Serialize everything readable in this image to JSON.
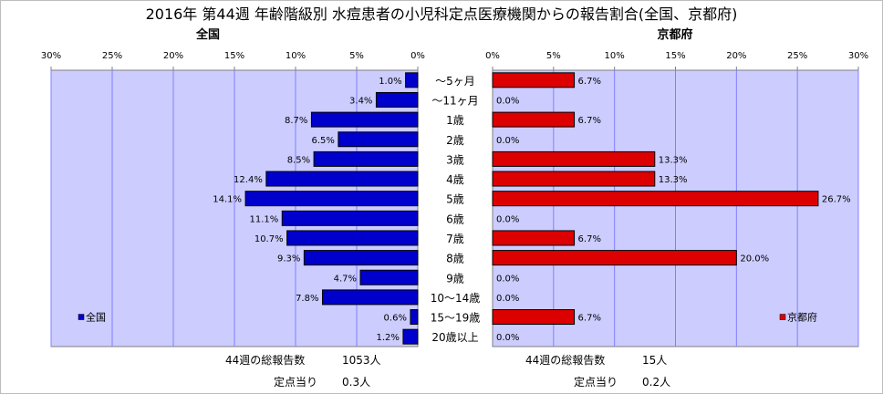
{
  "title": "2016年 第44週 年齢階級別 水痘患者の小児科定点医療機関からの報告割合(全国、京都府)",
  "colors": {
    "national": "#0000CC",
    "kyoto": "#DD0000",
    "plot_bg": "#CCCCFF",
    "grid": "#8080FF"
  },
  "chart_data": [
    {
      "type": "bar",
      "orientation": "horizontal-left",
      "title": "全国",
      "categories": [
        "～5ヶ月",
        "～11ヶ月",
        "1歳",
        "2歳",
        "3歳",
        "4歳",
        "5歳",
        "6歳",
        "7歳",
        "8歳",
        "9歳",
        "10～14歳",
        "15～19歳",
        "20歳以上"
      ],
      "series": [
        {
          "name": "全国",
          "values": [
            1.0,
            3.4,
            8.7,
            6.5,
            8.5,
            12.4,
            14.1,
            11.1,
            10.7,
            9.3,
            4.7,
            7.8,
            0.6,
            1.2
          ]
        }
      ],
      "value_labels": [
        "1.0%",
        "3.4%",
        "8.7%",
        "6.5%",
        "8.5%",
        "12.4%",
        "14.1%",
        "11.1%",
        "10.7%",
        "9.3%",
        "4.7%",
        "7.8%",
        "0.6%",
        "1.2%"
      ],
      "xlim": [
        0,
        30
      ],
      "ticks": [
        "0%",
        "5%",
        "10%",
        "15%",
        "20%",
        "25%",
        "30%"
      ],
      "grid": true,
      "legend": "left",
      "footer": {
        "total_label": "44週の総報告数",
        "total_value": "1053人",
        "per_label": "定点当り",
        "per_value": "0.3人"
      }
    },
    {
      "type": "bar",
      "orientation": "horizontal-right",
      "title": "京都府",
      "categories": [
        "～5ヶ月",
        "～11ヶ月",
        "1歳",
        "2歳",
        "3歳",
        "4歳",
        "5歳",
        "6歳",
        "7歳",
        "8歳",
        "9歳",
        "10～14歳",
        "15～19歳",
        "20歳以上"
      ],
      "series": [
        {
          "name": "京都府",
          "values": [
            6.7,
            0.0,
            6.7,
            0.0,
            13.3,
            13.3,
            26.7,
            0.0,
            6.7,
            20.0,
            0.0,
            0.0,
            6.7,
            0.0
          ]
        }
      ],
      "value_labels": [
        "6.7%",
        "0.0%",
        "6.7%",
        "0.0%",
        "13.3%",
        "13.3%",
        "26.7%",
        "0.0%",
        "6.7%",
        "20.0%",
        "0.0%",
        "0.0%",
        "6.7%",
        "0.0%"
      ],
      "xlim": [
        0,
        30
      ],
      "ticks": [
        "0%",
        "5%",
        "10%",
        "15%",
        "20%",
        "25%",
        "30%"
      ],
      "grid": true,
      "legend": "right",
      "footer": {
        "total_label": "44週の総報告数",
        "total_value": "15人",
        "per_label": "定点当り",
        "per_value": "0.2人"
      }
    }
  ]
}
